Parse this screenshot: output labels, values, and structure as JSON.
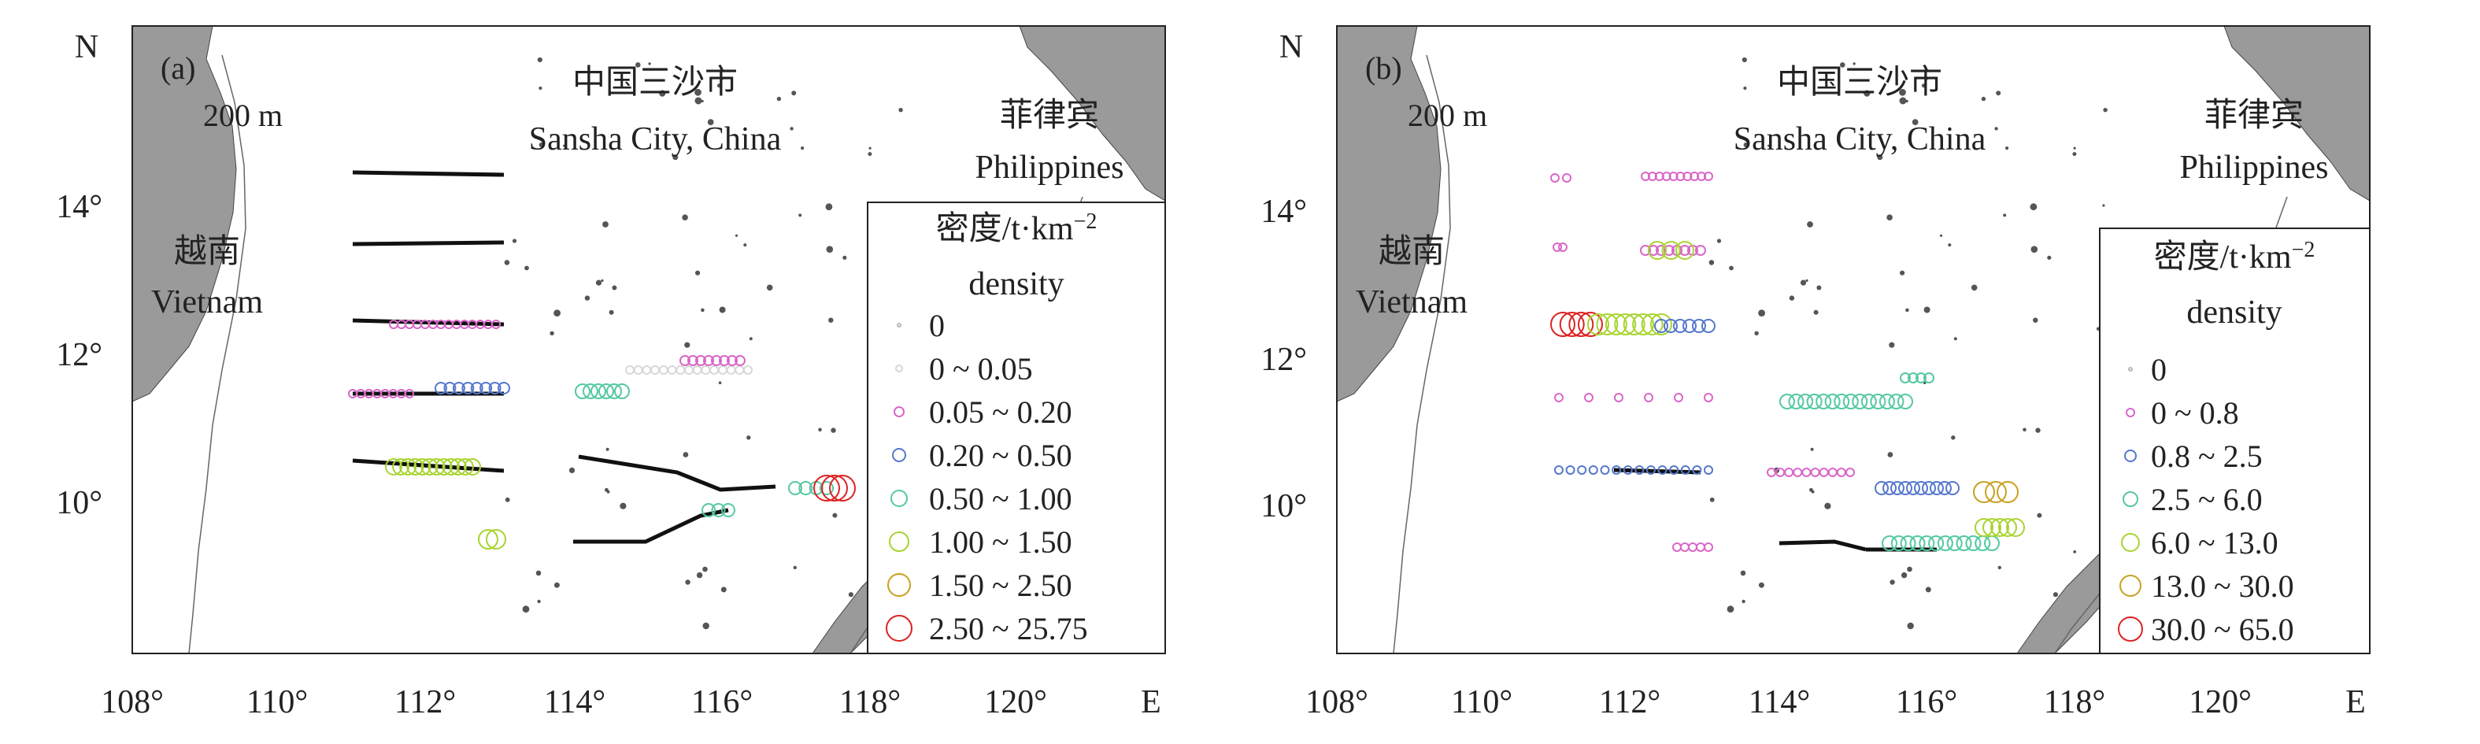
{
  "panels": [
    {
      "id": "a",
      "panel_label": "(a)",
      "north_label": "N",
      "east_label": "E",
      "isobath_label": "200 m",
      "places": {
        "sansha_cn": "中国三沙市",
        "sansha_en": "Sansha City, China",
        "vietnam_cn": "越南",
        "vietnam_en": "Vietnam",
        "philippines_cn": "菲律宾",
        "philippines_en": "Philippines"
      },
      "x_ticks": [
        "108°",
        "110°",
        "112°",
        "114°",
        "116°",
        "118°",
        "120°"
      ],
      "y_ticks": [
        "10°",
        "12°",
        "14°"
      ],
      "legend": {
        "title_line1": "密度/t·km",
        "title_sup": "−2",
        "title_line2": "density",
        "items": [
          {
            "label": "0",
            "color": "#b8b8b8"
          },
          {
            "label": "0 ~ 0.05",
            "color": "#d8d8d8"
          },
          {
            "label": "0.05 ~ 0.20",
            "color": "#d966c8"
          },
          {
            "label": "0.20 ~ 0.50",
            "color": "#5577cc"
          },
          {
            "label": "0.50 ~ 1.00",
            "color": "#55c9a0"
          },
          {
            "label": "1.00 ~ 1.50",
            "color": "#a8d430"
          },
          {
            "label": "1.50 ~ 2.50",
            "color": "#c8a020"
          },
          {
            "label": "2.50 ~ 25.75",
            "color": "#dd2222"
          }
        ]
      }
    },
    {
      "id": "b",
      "panel_label": "(b)",
      "north_label": "N",
      "east_label": "E",
      "isobath_label": "200 m",
      "places": {
        "sansha_cn": "中国三沙市",
        "sansha_en": "Sansha City, China",
        "vietnam_cn": "越南",
        "vietnam_en": "Vietnam",
        "philippines_cn": "菲律宾",
        "philippines_en": "Philippines"
      },
      "x_ticks": [
        "108°",
        "110°",
        "112°",
        "114°",
        "116°",
        "118°",
        "120°"
      ],
      "y_ticks": [
        "10°",
        "12°",
        "14°"
      ],
      "legend": {
        "title_line1": "密度/t·km",
        "title_sup": "−2",
        "title_line2": "density",
        "items": [
          {
            "label": "0",
            "color": "#b8b8b8"
          },
          {
            "label": "0 ~ 0.8",
            "color": "#d966c8"
          },
          {
            "label": "0.8 ~ 2.5",
            "color": "#5577cc"
          },
          {
            "label": "2.5 ~ 6.0",
            "color": "#55c9a0"
          },
          {
            "label": "6.0 ~ 13.0",
            "color": "#a8d430"
          },
          {
            "label": "13.0 ~ 30.0",
            "color": "#c8a020"
          },
          {
            "label": "30.0 ~ 65.0",
            "color": "#dd2222"
          }
        ]
      }
    }
  ]
}
